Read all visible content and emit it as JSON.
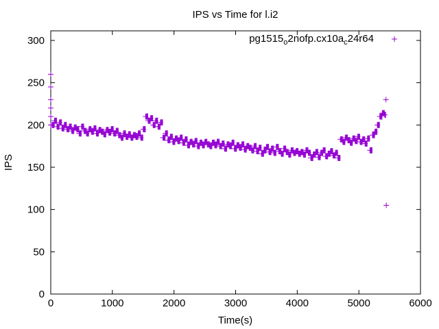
{
  "chart_data": {
    "type": "scatter",
    "title": "IPS vs Time for l.i2",
    "xlabel": "Time(s)",
    "ylabel": "IPS",
    "xlim": [
      0,
      6000
    ],
    "ylim": [
      0,
      300
    ],
    "xticks": [
      0,
      1000,
      2000,
      3000,
      4000,
      5000,
      6000
    ],
    "yticks": [
      0,
      50,
      100,
      150,
      200,
      250,
      300
    ],
    "grid": false,
    "legend": {
      "position": "top-right",
      "main": "pg1515",
      "sub1": "o",
      "mid": "2nofp.cx10a",
      "sub2": "c",
      "tail": "24r64"
    },
    "color": "#9400d3",
    "series": [
      {
        "name": "pg1515_o2nofp.cx10a_c24r64",
        "points": [
          [
            0,
            260
          ],
          [
            0,
            245
          ],
          [
            0,
            230
          ],
          [
            0,
            220
          ],
          [
            0,
            210
          ],
          [
            0,
            200
          ],
          [
            20,
            200
          ],
          [
            60,
            205
          ],
          [
            100,
            198
          ],
          [
            140,
            203
          ],
          [
            180,
            196
          ],
          [
            220,
            200
          ],
          [
            260,
            195
          ],
          [
            300,
            198
          ],
          [
            340,
            193
          ],
          [
            380,
            197
          ],
          [
            420,
            195
          ],
          [
            460,
            190
          ],
          [
            500,
            198
          ],
          [
            540,
            193
          ],
          [
            580,
            190
          ],
          [
            620,
            195
          ],
          [
            660,
            192
          ],
          [
            700,
            196
          ],
          [
            740,
            190
          ],
          [
            780,
            194
          ],
          [
            820,
            192
          ],
          [
            860,
            189
          ],
          [
            900,
            194
          ],
          [
            940,
            191
          ],
          [
            980,
            195
          ],
          [
            1020,
            190
          ],
          [
            1060,
            193
          ],
          [
            1100,
            188
          ],
          [
            1140,
            185
          ],
          [
            1180,
            190
          ],
          [
            1220,
            186
          ],
          [
            1260,
            189
          ],
          [
            1300,
            185
          ],
          [
            1340,
            188
          ],
          [
            1380,
            186
          ],
          [
            1420,
            190
          ],
          [
            1460,
            185
          ],
          [
            1500,
            195
          ],
          [
            1540,
            210
          ],
          [
            1580,
            205
          ],
          [
            1620,
            208
          ],
          [
            1660,
            200
          ],
          [
            1700,
            205
          ],
          [
            1740,
            198
          ],
          [
            1780,
            203
          ],
          [
            1820,
            185
          ],
          [
            1860,
            190
          ],
          [
            1900,
            182
          ],
          [
            1940,
            186
          ],
          [
            1980,
            180
          ],
          [
            2020,
            184
          ],
          [
            2060,
            181
          ],
          [
            2100,
            185
          ],
          [
            2140,
            179
          ],
          [
            2180,
            183
          ],
          [
            2220,
            176
          ],
          [
            2260,
            180
          ],
          [
            2300,
            177
          ],
          [
            2340,
            181
          ],
          [
            2380,
            175
          ],
          [
            2420,
            179
          ],
          [
            2460,
            176
          ],
          [
            2500,
            180
          ],
          [
            2540,
            177
          ],
          [
            2580,
            175
          ],
          [
            2620,
            179
          ],
          [
            2660,
            176
          ],
          [
            2700,
            180
          ],
          [
            2740,
            175
          ],
          [
            2780,
            178
          ],
          [
            2820,
            172
          ],
          [
            2860,
            177
          ],
          [
            2900,
            175
          ],
          [
            2940,
            179
          ],
          [
            2980,
            172
          ],
          [
            3020,
            176
          ],
          [
            3060,
            173
          ],
          [
            3100,
            177
          ],
          [
            3140,
            171
          ],
          [
            3180,
            175
          ],
          [
            3220,
            173
          ],
          [
            3260,
            170
          ],
          [
            3300,
            175
          ],
          [
            3340,
            169
          ],
          [
            3380,
            173
          ],
          [
            3420,
            166
          ],
          [
            3460,
            170
          ],
          [
            3500,
            174
          ],
          [
            3540,
            168
          ],
          [
            3580,
            172
          ],
          [
            3620,
            167
          ],
          [
            3660,
            174
          ],
          [
            3700,
            169
          ],
          [
            3740,
            166
          ],
          [
            3780,
            172
          ],
          [
            3820,
            168
          ],
          [
            3860,
            165
          ],
          [
            3900,
            170
          ],
          [
            3940,
            167
          ],
          [
            3980,
            169
          ],
          [
            4020,
            166
          ],
          [
            4060,
            168
          ],
          [
            4100,
            165
          ],
          [
            4140,
            170
          ],
          [
            4180,
            167
          ],
          [
            4220,
            161
          ],
          [
            4260,
            165
          ],
          [
            4300,
            168
          ],
          [
            4340,
            162
          ],
          [
            4380,
            167
          ],
          [
            4420,
            170
          ],
          [
            4460,
            163
          ],
          [
            4500,
            166
          ],
          [
            4540,
            169
          ],
          [
            4580,
            164
          ],
          [
            4620,
            167
          ],
          [
            4660,
            161
          ],
          [
            4700,
            183
          ],
          [
            4740,
            180
          ],
          [
            4780,
            185
          ],
          [
            4820,
            182
          ],
          [
            4860,
            179
          ],
          [
            4900,
            184
          ],
          [
            4940,
            181
          ],
          [
            4980,
            186
          ],
          [
            5020,
            180
          ],
          [
            5060,
            183
          ],
          [
            5100,
            178
          ],
          [
            5140,
            184
          ],
          [
            5180,
            170
          ],
          [
            5220,
            188
          ],
          [
            5260,
            192
          ],
          [
            5300,
            200
          ],
          [
            5340,
            210
          ],
          [
            5380,
            214
          ],
          [
            5420,
            212
          ],
          [
            5440,
            230
          ],
          [
            5445,
            105
          ]
        ]
      }
    ]
  }
}
